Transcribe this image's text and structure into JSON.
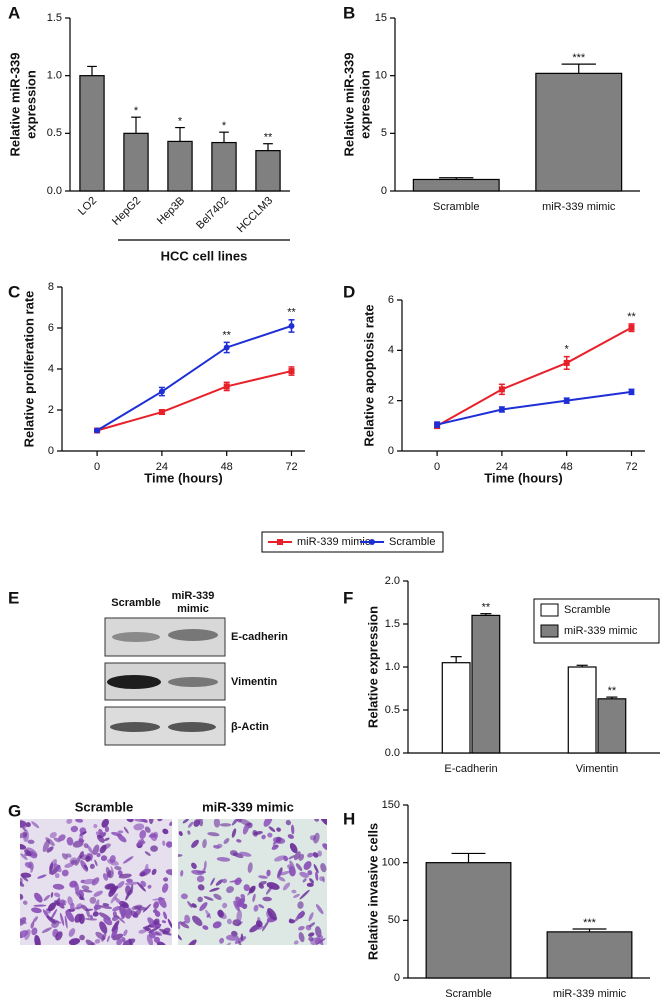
{
  "chart_data": [
    {
      "panel": "A",
      "type": "bar",
      "ylabel": [
        "Relative miR-339",
        "expression"
      ],
      "categories": [
        "LO2",
        "HepG2",
        "Hep3B",
        "Bel7402",
        "HCCLM3"
      ],
      "values": [
        1.0,
        0.5,
        0.43,
        0.42,
        0.35
      ],
      "errors": [
        0.08,
        0.14,
        0.12,
        0.09,
        0.06
      ],
      "annotations": [
        null,
        "*",
        "*",
        "*",
        "**"
      ],
      "color": "#808080",
      "ylim": [
        0,
        1.5
      ],
      "yticks": [
        {
          "value": 0,
          "label": "0.0"
        },
        {
          "value": 0.5,
          "label": "0.5"
        },
        {
          "value": 1,
          "label": "1.0"
        },
        {
          "value": 1.5,
          "label": "1.5"
        }
      ],
      "group_label": "HCC cell lines"
    },
    {
      "panel": "B",
      "type": "bar",
      "ylabel": [
        "Relative miR-339",
        "expression"
      ],
      "categories": [
        "Scramble",
        "miR-339 mimic"
      ],
      "values": [
        1.0,
        10.2
      ],
      "errors": [
        0.15,
        0.8
      ],
      "annotations": [
        null,
        "***"
      ],
      "color": "#808080",
      "ylim": [
        0,
        15
      ],
      "yticks": [
        0,
        5,
        10,
        15
      ]
    },
    {
      "panel": "C",
      "type": "line",
      "ylabel": "Relative proliferation rate",
      "xlabel": "Time (hours)",
      "x": [
        0,
        24,
        48,
        72
      ],
      "xlim": [
        -13,
        77
      ],
      "xticks": [
        0,
        24,
        48,
        72
      ],
      "ylim": [
        0,
        8
      ],
      "yticks": [
        0,
        2,
        4,
        6,
        8
      ],
      "series": [
        {
          "name": "miR-339 mimic",
          "color": "#e8202a",
          "marker": "square",
          "values": [
            1.0,
            1.9,
            3.15,
            3.9
          ],
          "errors": [
            0.05,
            0.1,
            0.2,
            0.2
          ]
        },
        {
          "name": "Scramble",
          "color": "#1f2fd6",
          "marker": "circle",
          "values": [
            1.0,
            2.9,
            5.05,
            6.1
          ],
          "errors": [
            0.05,
            0.2,
            0.25,
            0.3
          ]
        }
      ],
      "annotations": [
        null,
        null,
        "**",
        "**"
      ]
    },
    {
      "panel": "D",
      "type": "line",
      "ylabel": "Relative apoptosis rate",
      "xlabel": "Time (hours)",
      "x": [
        0,
        24,
        48,
        72
      ],
      "xlim": [
        -13,
        77
      ],
      "xticks": [
        0,
        24,
        48,
        72
      ],
      "ylim": [
        0,
        6
      ],
      "yticks": [
        0,
        2,
        4,
        6
      ],
      "series": [
        {
          "color": "#e8202a",
          "marker": "square",
          "values": [
            1.0,
            2.45,
            3.5,
            4.9
          ],
          "errors": [
            0.1,
            0.2,
            0.25,
            0.15
          ]
        },
        {
          "color": "#1f2fd6",
          "marker": "circle",
          "values": [
            1.05,
            1.65,
            2.0,
            2.35
          ],
          "errors": [
            0.1,
            0.1,
            0.1,
            0.1
          ]
        }
      ],
      "annotations": [
        null,
        null,
        "*",
        "**"
      ]
    },
    {
      "panel": "F",
      "type": "bar",
      "ylabel": "Relative expression",
      "categories": [
        "E-cadherin",
        "Vimentin"
      ],
      "series": [
        {
          "name": "Scramble",
          "color": "#ffffff",
          "values": [
            1.05,
            1.0
          ],
          "errors": [
            0.07,
            0.02
          ]
        },
        {
          "name": "miR-339 mimic",
          "color": "#808080",
          "values": [
            1.6,
            0.63
          ],
          "errors": [
            0.02,
            0.02
          ],
          "annotations": [
            "**",
            "**"
          ]
        }
      ],
      "ylim": [
        0,
        2
      ],
      "yticks": [
        {
          "value": 0,
          "label": "0.0"
        },
        {
          "value": 0.5,
          "label": "0.5"
        },
        {
          "value": 1,
          "label": "1.0"
        },
        {
          "value": 1.5,
          "label": "1.5"
        },
        {
          "value": 2,
          "label": "2.0"
        }
      ],
      "legend": "upper right"
    },
    {
      "panel": "H",
      "type": "bar",
      "ylabel": "Relative invasive cells",
      "categories": [
        "Scramble",
        "miR-339 mimic"
      ],
      "values": [
        100,
        40
      ],
      "errors": [
        8,
        2.5
      ],
      "annotations": [
        null,
        "***"
      ],
      "color": "#808080",
      "ylim": [
        0,
        150
      ],
      "yticks": [
        0,
        50,
        100,
        150
      ]
    }
  ],
  "panels": {
    "E": {
      "label": "E",
      "lanes": [
        "Scramble",
        [
          "miR-339",
          "mimic"
        ]
      ],
      "proteins": [
        "E-cadherin",
        "Vimentin",
        "β-Actin"
      ]
    },
    "G": {
      "label": "G",
      "images": [
        "Scramble",
        "miR-339 mimic"
      ]
    }
  }
}
